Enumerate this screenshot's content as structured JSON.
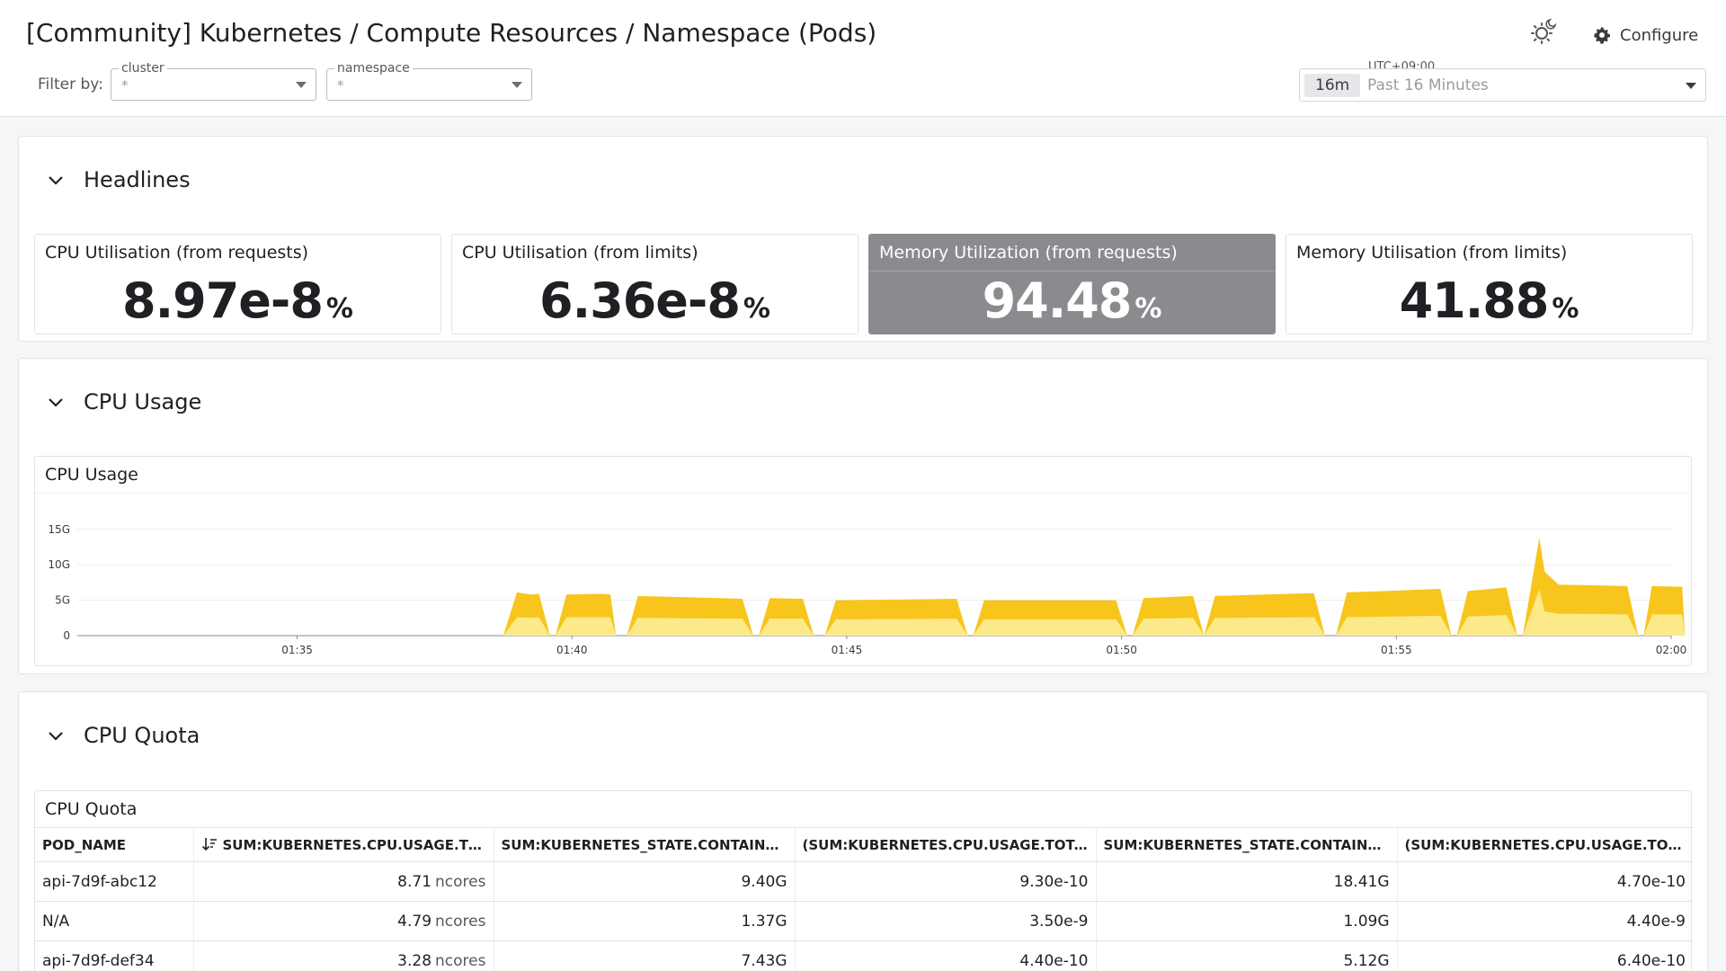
{
  "header": {
    "title": "[Community] Kubernetes / Compute Resources / Namespace (Pods)",
    "configure_label": "Configure",
    "filter_label": "Filter by:",
    "filters": [
      {
        "caption": "cluster",
        "value": "*"
      },
      {
        "caption": "namespace",
        "value": "*"
      }
    ],
    "timezone": "UTC+09:00",
    "time_badge": "16m",
    "time_text": "Past 16 Minutes"
  },
  "headlines": {
    "title": "Headlines",
    "tiles": [
      {
        "title": "CPU Utilisation (from requests)",
        "value": "8.97e-8",
        "unit": "%"
      },
      {
        "title": "CPU Utilisation (from limits)",
        "value": "6.36e-8",
        "unit": "%"
      },
      {
        "title": "Memory Utilization (from requests)",
        "value": "94.48",
        "unit": "%"
      },
      {
        "title": "Memory Utilisation (from limits)",
        "value": "41.88",
        "unit": "%"
      }
    ],
    "highlight_color": "#8b8b8f"
  },
  "cpu_usage": {
    "section_title": "CPU Usage",
    "panel_title": "CPU Usage",
    "chart_data": {
      "type": "area",
      "title": "CPU Usage",
      "xlabel": "",
      "ylabel": "",
      "x_range": [
        "01:31",
        "02:00"
      ],
      "ylim": [
        0,
        17
      ],
      "y_ticks": [
        {
          "v": 0,
          "label": "0"
        },
        {
          "v": 5,
          "label": "5G"
        },
        {
          "v": 10,
          "label": "10G"
        },
        {
          "v": 15,
          "label": "15G"
        }
      ],
      "x_ticks": [
        "01:35",
        "01:40",
        "01:45",
        "01:50",
        "01:55",
        "02:00"
      ],
      "grid": true,
      "colors": {
        "top": "#f7c51c",
        "bottom": "#fce98a"
      },
      "series": [
        {
          "name": "",
          "segments": [
            {
              "x": [
                "01:38.75",
                "01:39.00",
                "01:39.25",
                "01:39.40",
                "01:39.60"
              ],
              "top": [
                0,
                6.1,
                5.8,
                5.9,
                0
              ],
              "bottom": [
                0,
                2.6,
                2.5,
                2.6,
                0
              ]
            },
            {
              "x": [
                "01:39.70",
                "01:39.90",
                "01:40.50",
                "01:40.70",
                "01:40.80"
              ],
              "top": [
                0,
                5.8,
                5.9,
                5.8,
                0
              ],
              "bottom": [
                0,
                2.6,
                2.6,
                2.6,
                0
              ]
            },
            {
              "x": [
                "01:41.00",
                "01:41.20",
                "01:43.10",
                "01:43.30"
              ],
              "top": [
                0,
                5.6,
                5.2,
                0
              ],
              "bottom": [
                0,
                2.5,
                2.4,
                0
              ]
            },
            {
              "x": [
                "01:43.40",
                "01:43.60",
                "01:44.20",
                "01:44.40"
              ],
              "top": [
                0,
                5.3,
                5.2,
                0
              ],
              "bottom": [
                0,
                2.4,
                2.4,
                0
              ]
            },
            {
              "x": [
                "01:44.60",
                "01:44.80",
                "01:47.00",
                "01:47.20"
              ],
              "top": [
                0,
                5.0,
                5.2,
                0
              ],
              "bottom": [
                0,
                2.3,
                2.4,
                0
              ]
            },
            {
              "x": [
                "01:47.30",
                "01:47.50",
                "01:49.90",
                "01:50.10"
              ],
              "top": [
                0,
                5.0,
                5.0,
                0
              ],
              "bottom": [
                0,
                2.3,
                2.3,
                0
              ]
            },
            {
              "x": [
                "01:50.20",
                "01:50.40",
                "01:51.30",
                "01:51.50"
              ],
              "top": [
                0,
                5.3,
                5.6,
                0
              ],
              "bottom": [
                0,
                2.4,
                2.5,
                0
              ]
            },
            {
              "x": [
                "01:51.50",
                "01:51.70",
                "01:53.50",
                "01:53.70"
              ],
              "top": [
                0,
                5.6,
                6.0,
                0
              ],
              "bottom": [
                0,
                2.5,
                2.6,
                0
              ]
            },
            {
              "x": [
                "01:53.90",
                "01:54.10",
                "01:55.80",
                "01:56.00"
              ],
              "top": [
                0,
                6.1,
                6.6,
                0
              ],
              "bottom": [
                0,
                2.6,
                2.8,
                0
              ]
            },
            {
              "x": [
                "01:56.10",
                "01:56.30",
                "01:57.00",
                "01:57.20"
              ],
              "top": [
                0,
                6.3,
                6.8,
                0
              ],
              "bottom": [
                0,
                2.7,
                2.9,
                0
              ]
            },
            {
              "x": [
                "01:57.30",
                "01:57.60",
                "01:57.70",
                "01:57.95",
                "01:59.20",
                "01:59.40"
              ],
              "top": [
                0,
                13.8,
                9.0,
                7.2,
                7.0,
                0
              ],
              "bottom": [
                0,
                6.5,
                3.4,
                3.1,
                3.0,
                0
              ]
            },
            {
              "x": [
                "01:59.50",
                "01:59.65",
                "02:00.20",
                "02:00.25"
              ],
              "top": [
                0,
                7.0,
                6.9,
                0
              ],
              "bottom": [
                0,
                3.0,
                3.0,
                0
              ]
            }
          ]
        }
      ]
    }
  },
  "cpu_quota": {
    "section_title": "CPU Quota",
    "panel_title": "CPU Quota",
    "columns": [
      "POD_NAME",
      "SUM:KUBERNETES.CPU.USAGE.TOT...",
      "SUM:KUBERNETES_STATE.CONTAINER.C...",
      "(SUM:KUBERNETES.CPU.USAGE.TOTAL{...",
      "SUM:KUBERNETES_STATE.CONTAINER.C...",
      "(SUM:KUBERNETES.CPU.USAGE.TOTAL{..."
    ],
    "rows": [
      {
        "pod": "api-7d9f-abc12",
        "usage": "8.71",
        "usage_unit": "ncores",
        "c2": "9.40G",
        "c3": "9.30e-10",
        "c4": "18.41G",
        "c5": "4.70e-10"
      },
      {
        "pod": "N/A",
        "usage": "4.79",
        "usage_unit": "ncores",
        "c2": "1.37G",
        "c3": "3.50e-9",
        "c4": "1.09G",
        "c5": "4.40e-9"
      },
      {
        "pod": "api-7d9f-def34",
        "usage": "3.28",
        "usage_unit": "ncores",
        "c2": "7.43G",
        "c3": "4.40e-10",
        "c4": "5.12G",
        "c5": "6.40e-10"
      }
    ]
  }
}
